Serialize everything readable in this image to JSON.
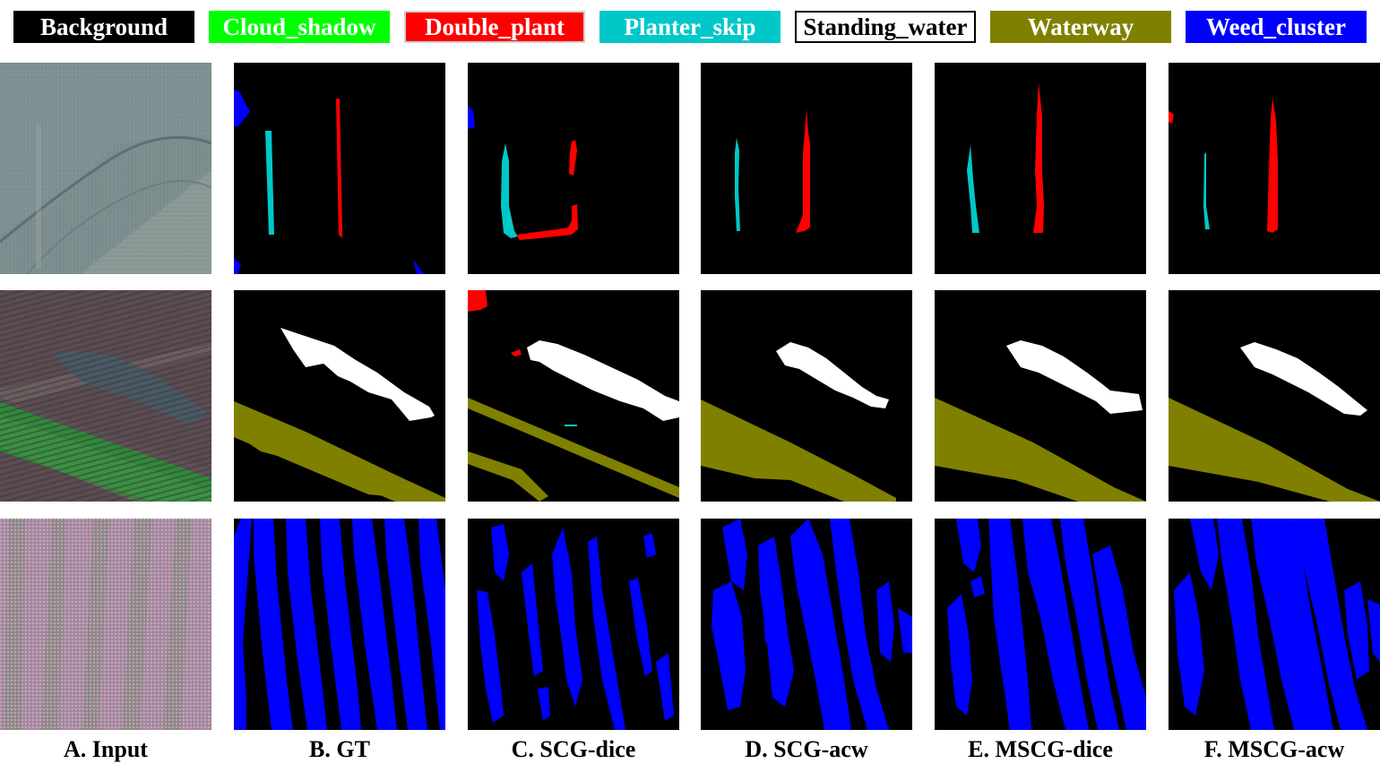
{
  "legend": [
    {
      "label": "Background",
      "color": "#000000",
      "text_color": "#ffffff"
    },
    {
      "label": "Cloud_shadow",
      "color": "#00ff00",
      "text_color": "#ffffff"
    },
    {
      "label": "Double_plant",
      "color": "#ff0000",
      "text_color": "#ffffff"
    },
    {
      "label": "Planter_skip",
      "color": "#00c8c8",
      "text_color": "#ffffff"
    },
    {
      "label": "Standing_water",
      "color": "#ffffff",
      "text_color": "#000000"
    },
    {
      "label": "Waterway",
      "color": "#808000",
      "text_color": "#ffffff"
    },
    {
      "label": "Weed_cluster",
      "color": "#0000ff",
      "text_color": "#ffffff"
    }
  ],
  "columns": [
    {
      "caption": "A. Input"
    },
    {
      "caption": "B. GT"
    },
    {
      "caption": "C. SCG-dice"
    },
    {
      "caption": "D. SCG-acw"
    },
    {
      "caption": "E. MSCG-dice"
    },
    {
      "caption": "F. MSCG-acw"
    }
  ],
  "colors": {
    "background": "#000000",
    "double_plant": "#ff0000",
    "planter_skip": "#00c8c8",
    "standing_water": "#ffffff",
    "waterway": "#808000",
    "weed_cluster": "#0000ff"
  }
}
